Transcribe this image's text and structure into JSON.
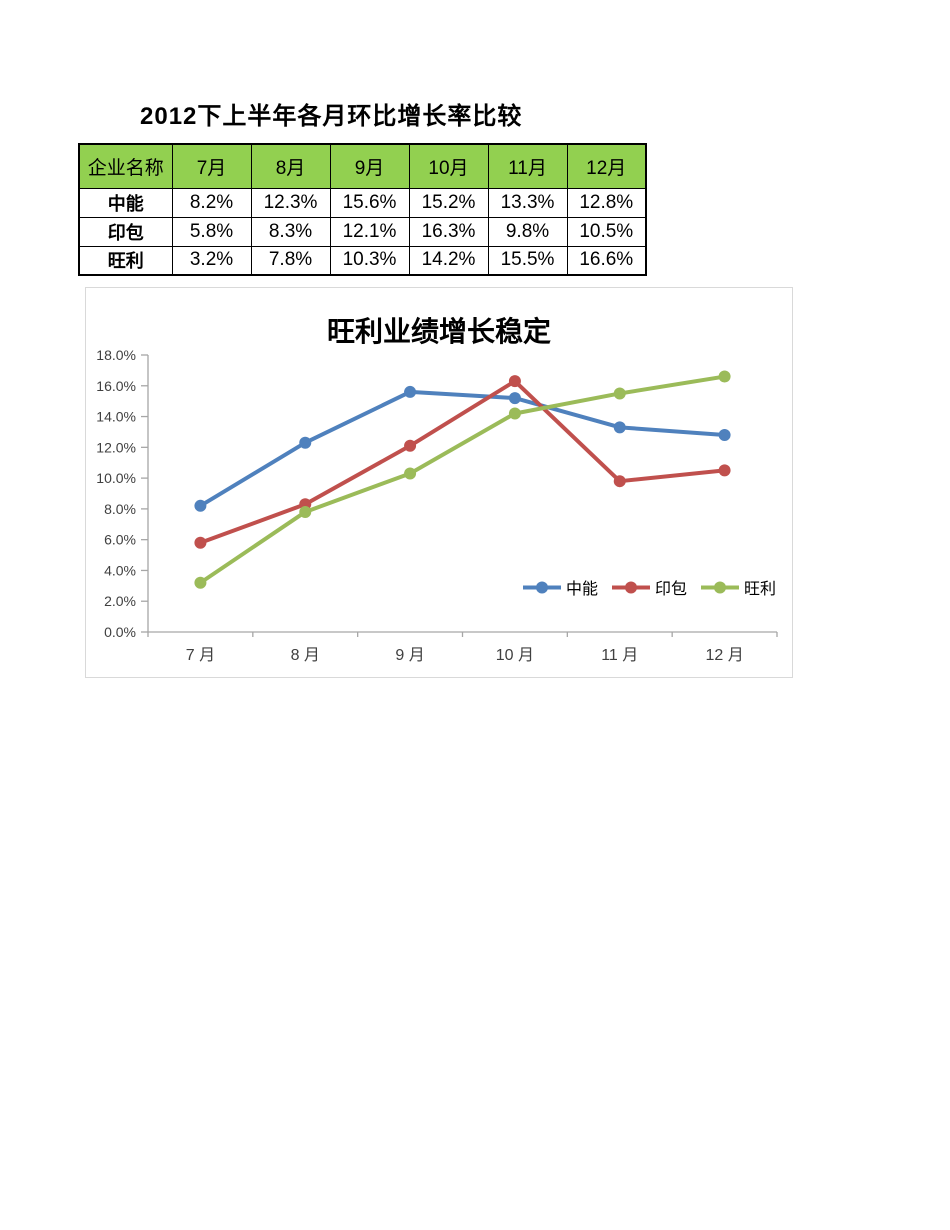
{
  "page": {
    "title": "2012下上半年各月环比增长率比较"
  },
  "table": {
    "header_bg": "#92D050",
    "headers": [
      "企业名称",
      "7月",
      "8月",
      "9月",
      "10月",
      "11月",
      "12月"
    ],
    "rows": [
      {
        "name": "中能",
        "values": [
          "8.2%",
          "12.3%",
          "15.6%",
          "15.2%",
          "13.3%",
          "12.8%"
        ]
      },
      {
        "name": "印包",
        "values": [
          "5.8%",
          "8.3%",
          "12.1%",
          "16.3%",
          "9.8%",
          "10.5%"
        ]
      },
      {
        "name": "旺利",
        "values": [
          "3.2%",
          "7.8%",
          "10.3%",
          "14.2%",
          "15.5%",
          "16.6%"
        ]
      }
    ]
  },
  "chart_data": {
    "type": "line",
    "title": "旺利业绩增长稳定",
    "categories": [
      "7 月",
      "8 月",
      "9 月",
      "10 月",
      "11 月",
      "12 月"
    ],
    "series": [
      {
        "name": "中能",
        "color": "#4F81BD",
        "values": [
          8.2,
          12.3,
          15.6,
          15.2,
          13.3,
          12.8
        ]
      },
      {
        "name": "印包",
        "color": "#C0504D",
        "values": [
          5.8,
          8.3,
          12.1,
          16.3,
          9.8,
          10.5
        ]
      },
      {
        "name": "旺利",
        "color": "#9BBB59",
        "values": [
          3.2,
          7.8,
          10.3,
          14.2,
          15.5,
          16.6
        ]
      }
    ],
    "ylim": [
      0,
      18
    ],
    "ytick_step": 2,
    "ytick_format": "percent1",
    "grid": false,
    "legend_position": "inside-bottom-right",
    "axis_color": "#A6A6A6",
    "tick_label_color": "#404040"
  }
}
